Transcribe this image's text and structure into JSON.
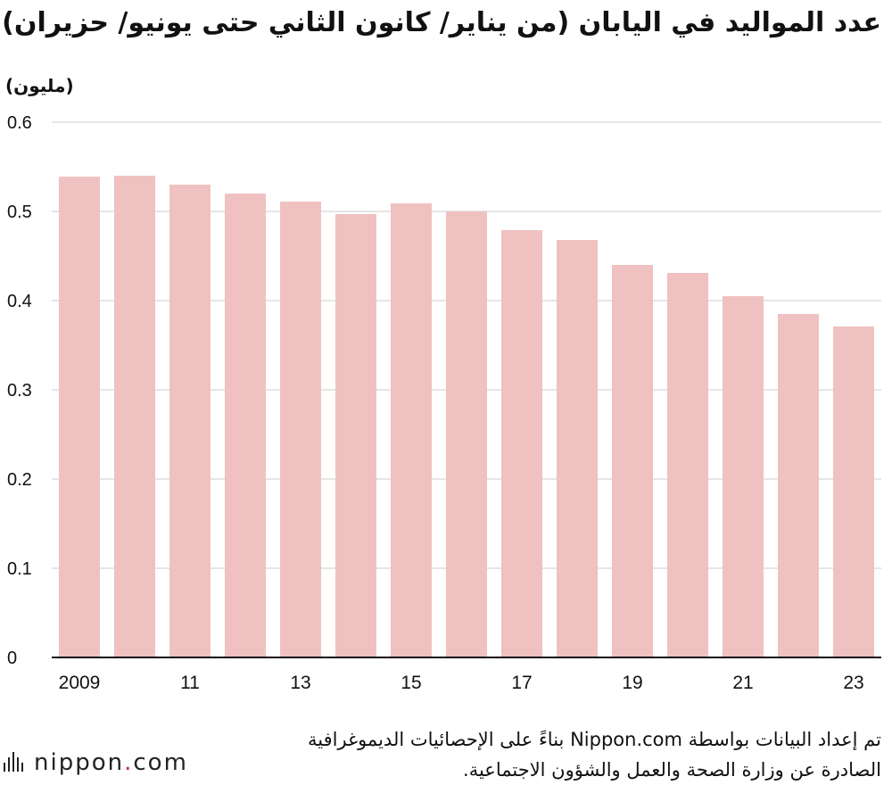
{
  "title": "عدد المواليد في اليابان (من يناير/ كانون الثاني حتى يونيو/ حزيران)",
  "unit_label": "(مليون)",
  "source_line1": "تم إعداد البيانات بواسطة Nippon.com بناءً على الإحصائيات الديموغرافية",
  "source_line2": "الصادرة عن وزارة الصحة والعمل والشؤون الاجتماعية.",
  "logo": {
    "name": "nippon",
    "dot": ".",
    "suffix": "com",
    "icon": "nippon-logo-icon"
  },
  "colors": {
    "bar": "#f0c1c1",
    "grid": "#cccccc",
    "axis": "#111111",
    "logo_dot": "#c0303a"
  },
  "chart_data": {
    "type": "bar",
    "categories": [
      "2009",
      "2010",
      "2011",
      "2012",
      "2013",
      "2014",
      "2015",
      "2016",
      "2017",
      "2018",
      "2019",
      "2020",
      "2021",
      "2022",
      "2023"
    ],
    "tick_labels": [
      "2009",
      "",
      "11",
      "",
      "13",
      "",
      "15",
      "",
      "17",
      "",
      "19",
      "",
      "21",
      "",
      "23"
    ],
    "values": [
      0.539,
      0.54,
      0.53,
      0.52,
      0.511,
      0.497,
      0.509,
      0.5,
      0.479,
      0.468,
      0.44,
      0.431,
      0.405,
      0.385,
      0.371
    ],
    "y_ticks": [
      "0",
      "0.1",
      "0.2",
      "0.3",
      "0.4",
      "0.5",
      "0.6"
    ],
    "ylim": [
      0,
      0.6
    ],
    "grid": true,
    "legend": "none"
  }
}
